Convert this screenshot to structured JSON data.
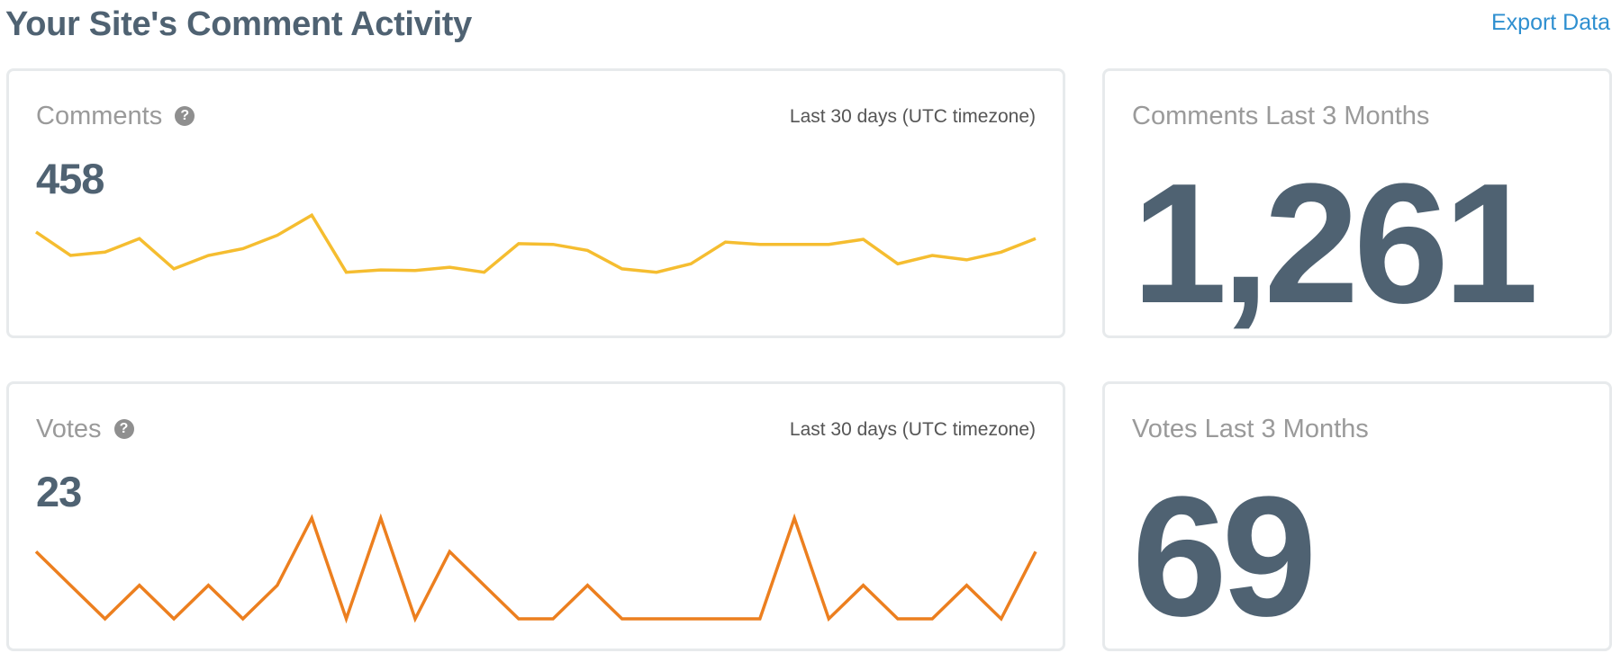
{
  "page": {
    "title": "Your Site's Comment Activity",
    "export_label": "Export Data"
  },
  "comments": {
    "label": "Comments",
    "help_icon": "question-circle-icon",
    "range": "Last 30 days (UTC timezone)",
    "count": "458",
    "line_color": "#f5bd30",
    "total_label": "Comments Last 3 Months",
    "total_value": "1,261"
  },
  "votes": {
    "label": "Votes",
    "help_icon": "question-circle-icon",
    "range": "Last 30 days (UTC timezone)",
    "count": "23",
    "line_color": "#ec7f1f",
    "total_label": "Votes Last 3 Months",
    "total_value": "69"
  },
  "chart_data": [
    {
      "type": "line",
      "series": [
        {
          "values": [
            22,
            15,
            16,
            20,
            11,
            15,
            17,
            21,
            27,
            10,
            10.7,
            10.5,
            11.5,
            10,
            18.5,
            18.3,
            16.5,
            11,
            10,
            12.5,
            19,
            18.3,
            18.3,
            18.3,
            19.8,
            12.5,
            15,
            13.7,
            16,
            20
          ]
        }
      ],
      "ylim": [
        0,
        30
      ],
      "grid": false
    },
    {
      "type": "line",
      "series": [
        {
          "values": [
            2,
            1,
            0,
            1,
            0,
            1,
            0,
            1,
            3,
            0,
            3,
            0,
            2,
            1,
            0,
            0,
            1,
            0,
            0,
            0,
            0,
            0,
            3,
            0,
            1,
            0,
            0,
            1,
            0,
            2
          ]
        }
      ],
      "ylim": [
        0,
        3
      ],
      "grid": false
    }
  ]
}
